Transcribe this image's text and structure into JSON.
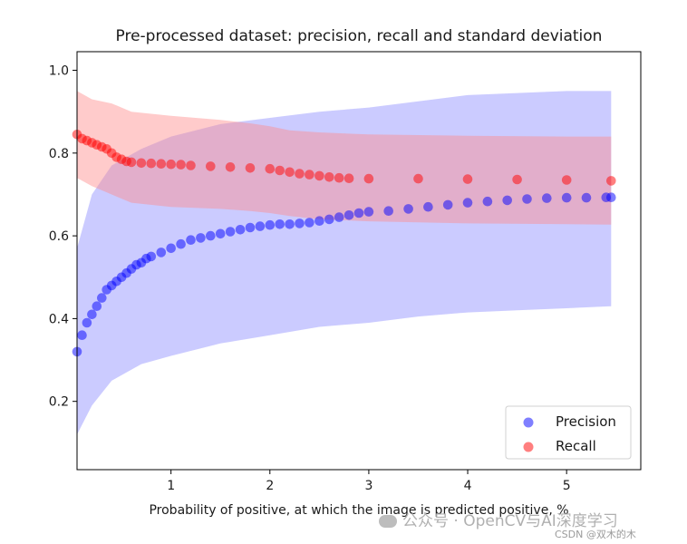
{
  "chart_data": {
    "type": "scatter",
    "title": "Pre-processed dataset: precision, recall and standard deviation",
    "xlabel": "Probability of positive, at which the image is predicted positive, %",
    "ylabel": "",
    "xlim": [
      0.05,
      5.75
    ],
    "ylim": [
      0.035,
      1.045
    ],
    "xticks": [
      1,
      2,
      3,
      4,
      5
    ],
    "yticks": [
      0.2,
      0.4,
      0.6,
      0.8,
      1.0
    ],
    "xtick_labels": [
      "1",
      "2",
      "3",
      "4",
      "5"
    ],
    "ytick_labels": [
      "0.2",
      "0.4",
      "0.6",
      "0.8",
      "1.0"
    ],
    "grid": false,
    "legend_position": "lower-right",
    "series": [
      {
        "name": "Precision",
        "color": "#0000ff",
        "band_color": "#8c8cff",
        "points": [
          [
            0.05,
            0.32
          ],
          [
            0.1,
            0.36
          ],
          [
            0.15,
            0.39
          ],
          [
            0.2,
            0.41
          ],
          [
            0.25,
            0.43
          ],
          [
            0.3,
            0.45
          ],
          [
            0.35,
            0.47
          ],
          [
            0.4,
            0.48
          ],
          [
            0.45,
            0.49
          ],
          [
            0.5,
            0.5
          ],
          [
            0.55,
            0.51
          ],
          [
            0.6,
            0.52
          ],
          [
            0.65,
            0.53
          ],
          [
            0.7,
            0.535
          ],
          [
            0.75,
            0.545
          ],
          [
            0.8,
            0.55
          ],
          [
            0.9,
            0.56
          ],
          [
            1.0,
            0.57
          ],
          [
            1.1,
            0.58
          ],
          [
            1.2,
            0.59
          ],
          [
            1.3,
            0.595
          ],
          [
            1.4,
            0.6
          ],
          [
            1.5,
            0.605
          ],
          [
            1.6,
            0.61
          ],
          [
            1.7,
            0.615
          ],
          [
            1.8,
            0.62
          ],
          [
            1.9,
            0.623
          ],
          [
            2.0,
            0.626
          ],
          [
            2.1,
            0.628
          ],
          [
            2.2,
            0.628
          ],
          [
            2.3,
            0.63
          ],
          [
            2.4,
            0.632
          ],
          [
            2.5,
            0.636
          ],
          [
            2.6,
            0.64
          ],
          [
            2.7,
            0.645
          ],
          [
            2.8,
            0.65
          ],
          [
            2.9,
            0.655
          ],
          [
            3.0,
            0.658
          ],
          [
            3.2,
            0.66
          ],
          [
            3.4,
            0.665
          ],
          [
            3.6,
            0.67
          ],
          [
            3.8,
            0.675
          ],
          [
            4.0,
            0.68
          ],
          [
            4.2,
            0.683
          ],
          [
            4.4,
            0.686
          ],
          [
            4.6,
            0.689
          ],
          [
            4.8,
            0.691
          ],
          [
            5.0,
            0.692
          ],
          [
            5.2,
            0.692
          ],
          [
            5.4,
            0.693
          ],
          [
            5.45,
            0.693
          ]
        ],
        "band": [
          [
            0.05,
            0.12,
            0.57
          ],
          [
            0.2,
            0.19,
            0.7
          ],
          [
            0.4,
            0.25,
            0.77
          ],
          [
            0.7,
            0.29,
            0.81
          ],
          [
            1.0,
            0.31,
            0.84
          ],
          [
            1.5,
            0.34,
            0.87
          ],
          [
            2.0,
            0.36,
            0.885
          ],
          [
            2.5,
            0.38,
            0.9
          ],
          [
            3.0,
            0.39,
            0.91
          ],
          [
            3.5,
            0.405,
            0.925
          ],
          [
            4.0,
            0.415,
            0.94
          ],
          [
            4.5,
            0.42,
            0.945
          ],
          [
            5.0,
            0.425,
            0.95
          ],
          [
            5.45,
            0.43,
            0.95
          ]
        ]
      },
      {
        "name": "Recall",
        "color": "#ff0000",
        "band_color": "#ff8c8c",
        "points": [
          [
            0.05,
            0.845
          ],
          [
            0.1,
            0.835
          ],
          [
            0.15,
            0.83
          ],
          [
            0.2,
            0.825
          ],
          [
            0.25,
            0.82
          ],
          [
            0.3,
            0.815
          ],
          [
            0.35,
            0.81
          ],
          [
            0.4,
            0.8
          ],
          [
            0.45,
            0.79
          ],
          [
            0.5,
            0.785
          ],
          [
            0.55,
            0.78
          ],
          [
            0.6,
            0.778
          ],
          [
            0.7,
            0.776
          ],
          [
            0.8,
            0.775
          ],
          [
            0.9,
            0.774
          ],
          [
            1.0,
            0.773
          ],
          [
            1.1,
            0.772
          ],
          [
            1.2,
            0.77
          ],
          [
            1.4,
            0.768
          ],
          [
            1.6,
            0.766
          ],
          [
            1.8,
            0.764
          ],
          [
            2.0,
            0.762
          ],
          [
            2.1,
            0.758
          ],
          [
            2.2,
            0.754
          ],
          [
            2.3,
            0.75
          ],
          [
            2.4,
            0.748
          ],
          [
            2.5,
            0.745
          ],
          [
            2.6,
            0.742
          ],
          [
            2.7,
            0.74
          ],
          [
            2.8,
            0.739
          ],
          [
            3.0,
            0.738
          ],
          [
            3.5,
            0.738
          ],
          [
            4.0,
            0.737
          ],
          [
            4.5,
            0.736
          ],
          [
            5.0,
            0.735
          ],
          [
            5.45,
            0.733
          ]
        ],
        "band": [
          [
            0.05,
            0.74,
            0.95
          ],
          [
            0.2,
            0.72,
            0.93
          ],
          [
            0.4,
            0.7,
            0.92
          ],
          [
            0.6,
            0.68,
            0.9
          ],
          [
            1.0,
            0.67,
            0.89
          ],
          [
            1.5,
            0.665,
            0.88
          ],
          [
            1.8,
            0.66,
            0.872
          ],
          [
            2.0,
            0.655,
            0.865
          ],
          [
            2.2,
            0.648,
            0.855
          ],
          [
            2.5,
            0.64,
            0.85
          ],
          [
            3.0,
            0.635,
            0.845
          ],
          [
            4.0,
            0.63,
            0.842
          ],
          [
            5.0,
            0.628,
            0.84
          ],
          [
            5.45,
            0.627,
            0.84
          ]
        ]
      }
    ]
  },
  "watermark": {
    "line1": "公众号 · OpenCV与AI深度学习",
    "line2": "CSDN @双木的木"
  }
}
